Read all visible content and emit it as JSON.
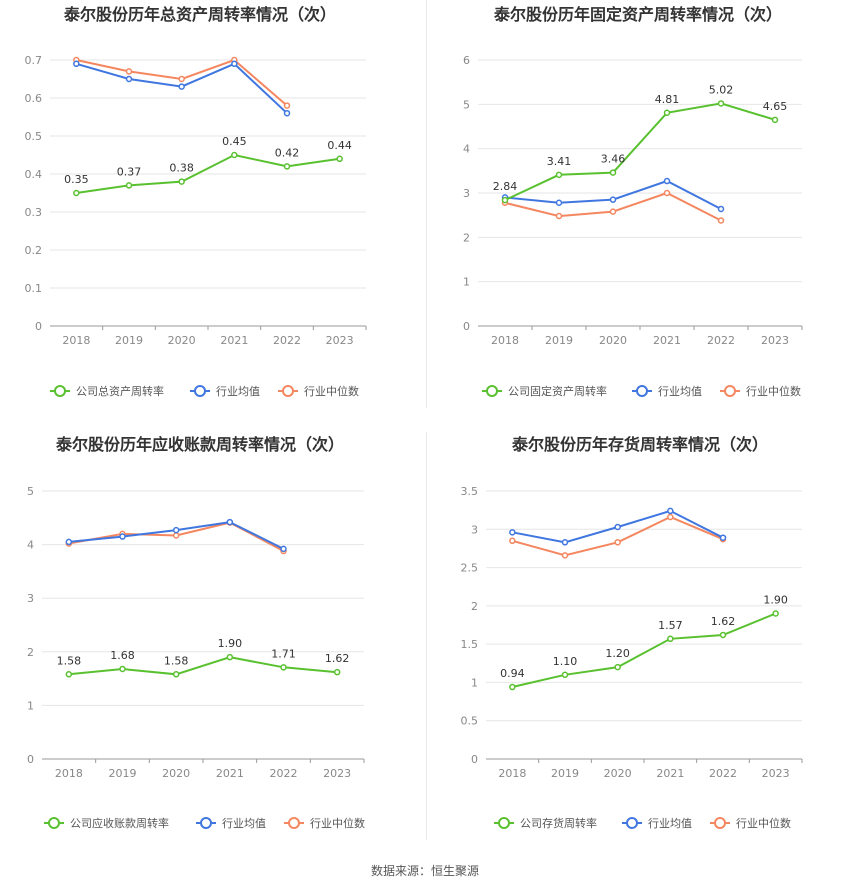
{
  "source_text": "数据来源：恒生聚源",
  "colors": {
    "company": "#59c12f",
    "avg": "#3f76e0",
    "median": "#f4875f",
    "grid": "#e6e6e6",
    "axis": "#999999"
  },
  "legend": {
    "company_names": [
      "公司总资产周转率",
      "公司固定资产周转率",
      "公司应收账款周转率",
      "公司存货周转率"
    ],
    "avg": "行业均值",
    "median": "行业中位数"
  },
  "chart_data": [
    {
      "type": "line",
      "title": "泰尔股份历年总资产周转率情况（次）",
      "categories": [
        "2018",
        "2019",
        "2020",
        "2021",
        "2022",
        "2023"
      ],
      "ylim": [
        0,
        0.7
      ],
      "yticks": [
        "0",
        "0.1",
        "0.2",
        "0.3",
        "0.4",
        "0.5",
        "0.6",
        "0.7"
      ],
      "ytick_values": [
        0,
        0.1,
        0.2,
        0.3,
        0.4,
        0.5,
        0.6,
        0.7
      ],
      "grid": true,
      "series": [
        {
          "name": "公司总资产周转率",
          "values": [
            0.35,
            0.37,
            0.38,
            0.45,
            0.42,
            0.44
          ],
          "labels": [
            "0.35",
            "0.37",
            "0.38",
            "0.45",
            "0.42",
            "0.44"
          ],
          "color": "#59c12f"
        },
        {
          "name": "行业均值",
          "values": [
            0.69,
            0.65,
            0.63,
            0.69,
            0.56,
            null
          ],
          "color": "#3f76e0"
        },
        {
          "name": "行业中位数",
          "values": [
            0.7,
            0.67,
            0.65,
            0.7,
            0.58,
            null
          ],
          "color": "#f4875f"
        }
      ]
    },
    {
      "type": "line",
      "title": "泰尔股份历年固定资产周转率情况（次）",
      "categories": [
        "2018",
        "2019",
        "2020",
        "2021",
        "2022",
        "2023"
      ],
      "ylim": [
        0,
        6
      ],
      "yticks": [
        "0",
        "1",
        "2",
        "3",
        "4",
        "5",
        "6"
      ],
      "ytick_values": [
        0,
        1,
        2,
        3,
        4,
        5,
        6
      ],
      "grid": true,
      "series": [
        {
          "name": "公司固定资产周转率",
          "values": [
            2.84,
            3.41,
            3.46,
            4.81,
            5.02,
            4.65
          ],
          "labels": [
            "2.84",
            "3.41",
            "3.46",
            "4.81",
            "5.02",
            "4.65"
          ],
          "color": "#59c12f"
        },
        {
          "name": "行业均值",
          "values": [
            2.9,
            2.78,
            2.85,
            3.27,
            2.64,
            null
          ],
          "color": "#3f76e0"
        },
        {
          "name": "行业中位数",
          "values": [
            2.78,
            2.48,
            2.58,
            3.0,
            2.38,
            null
          ],
          "color": "#f4875f"
        }
      ]
    },
    {
      "type": "line",
      "title": "泰尔股份历年应收账款周转率情况（次）",
      "categories": [
        "2018",
        "2019",
        "2020",
        "2021",
        "2022",
        "2023"
      ],
      "ylim": [
        0,
        5
      ],
      "yticks": [
        "0",
        "1",
        "2",
        "3",
        "4",
        "5"
      ],
      "ytick_values": [
        0,
        1,
        2,
        3,
        4,
        5
      ],
      "grid": true,
      "series": [
        {
          "name": "公司应收账款周转率",
          "values": [
            1.58,
            1.68,
            1.58,
            1.9,
            1.71,
            1.62
          ],
          "labels": [
            "1.58",
            "1.68",
            "1.58",
            "1.90",
            "1.71",
            "1.62"
          ],
          "color": "#59c12f"
        },
        {
          "name": "行业均值",
          "values": [
            4.05,
            4.15,
            4.27,
            4.42,
            3.92,
            null
          ],
          "color": "#3f76e0"
        },
        {
          "name": "行业中位数",
          "values": [
            4.02,
            4.2,
            4.17,
            4.41,
            3.88,
            null
          ],
          "color": "#f4875f"
        }
      ]
    },
    {
      "type": "line",
      "title": "泰尔股份历年存货周转率情况（次）",
      "categories": [
        "2018",
        "2019",
        "2020",
        "2021",
        "2022",
        "2023"
      ],
      "ylim": [
        0,
        3.5
      ],
      "yticks": [
        "0",
        "0.5",
        "1",
        "1.5",
        "2",
        "2.5",
        "3",
        "3.5"
      ],
      "ytick_values": [
        0,
        0.5,
        1,
        1.5,
        2,
        2.5,
        3,
        3.5
      ],
      "grid": true,
      "series": [
        {
          "name": "公司存货周转率",
          "values": [
            0.94,
            1.1,
            1.2,
            1.57,
            1.62,
            1.9
          ],
          "labels": [
            "0.94",
            "1.10",
            "1.20",
            "1.57",
            "1.62",
            "1.90"
          ],
          "color": "#59c12f"
        },
        {
          "name": "行业均值",
          "values": [
            2.96,
            2.83,
            3.03,
            3.24,
            2.89,
            null
          ],
          "color": "#3f76e0"
        },
        {
          "name": "行业中位数",
          "values": [
            2.85,
            2.66,
            2.83,
            3.16,
            2.87,
            null
          ],
          "color": "#f4875f"
        }
      ]
    }
  ]
}
